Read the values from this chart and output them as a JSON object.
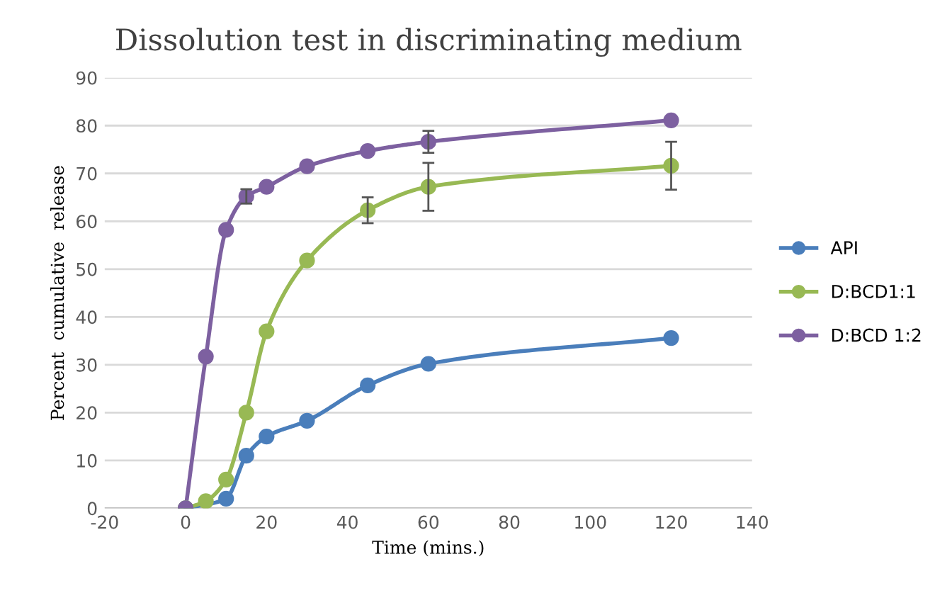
{
  "chart_data": {
    "type": "line",
    "title": "Dissolution test in discriminating medium",
    "xlabel": "Time (mins.)",
    "ylabel": "Percent  cumulative  release",
    "x": [
      0,
      5,
      10,
      15,
      20,
      30,
      45,
      60,
      120
    ],
    "series": [
      {
        "name": "API",
        "color": "#4a7ebb",
        "values": [
          0,
          null,
          2,
          11,
          15,
          18.3,
          25.7,
          30.2,
          35.6
        ]
      },
      {
        "name": "D:BCD1:1",
        "color": "#98b954",
        "values": [
          0,
          1.5,
          6,
          20,
          37,
          51.8,
          62.3,
          67.2,
          71.6
        ],
        "errors": [
          null,
          null,
          null,
          null,
          null,
          null,
          2.7,
          5,
          5
        ]
      },
      {
        "name": "D:BCD 1:2",
        "color": "#7d60a0",
        "values": [
          0,
          31.7,
          58.2,
          65.2,
          67.2,
          71.5,
          74.7,
          76.6,
          81.1
        ],
        "errors": [
          null,
          null,
          null,
          1.5,
          null,
          null,
          null,
          2.3,
          null
        ]
      }
    ],
    "xlim": [
      -20,
      140
    ],
    "xticks": [
      -20,
      0,
      20,
      40,
      60,
      80,
      100,
      120,
      140
    ],
    "ylim": [
      0,
      90
    ],
    "yticks": [
      0,
      10,
      20,
      30,
      40,
      50,
      60,
      70,
      80,
      90
    ],
    "grid": "y",
    "legend": "right",
    "marker": "circle",
    "line_style": "solid"
  }
}
